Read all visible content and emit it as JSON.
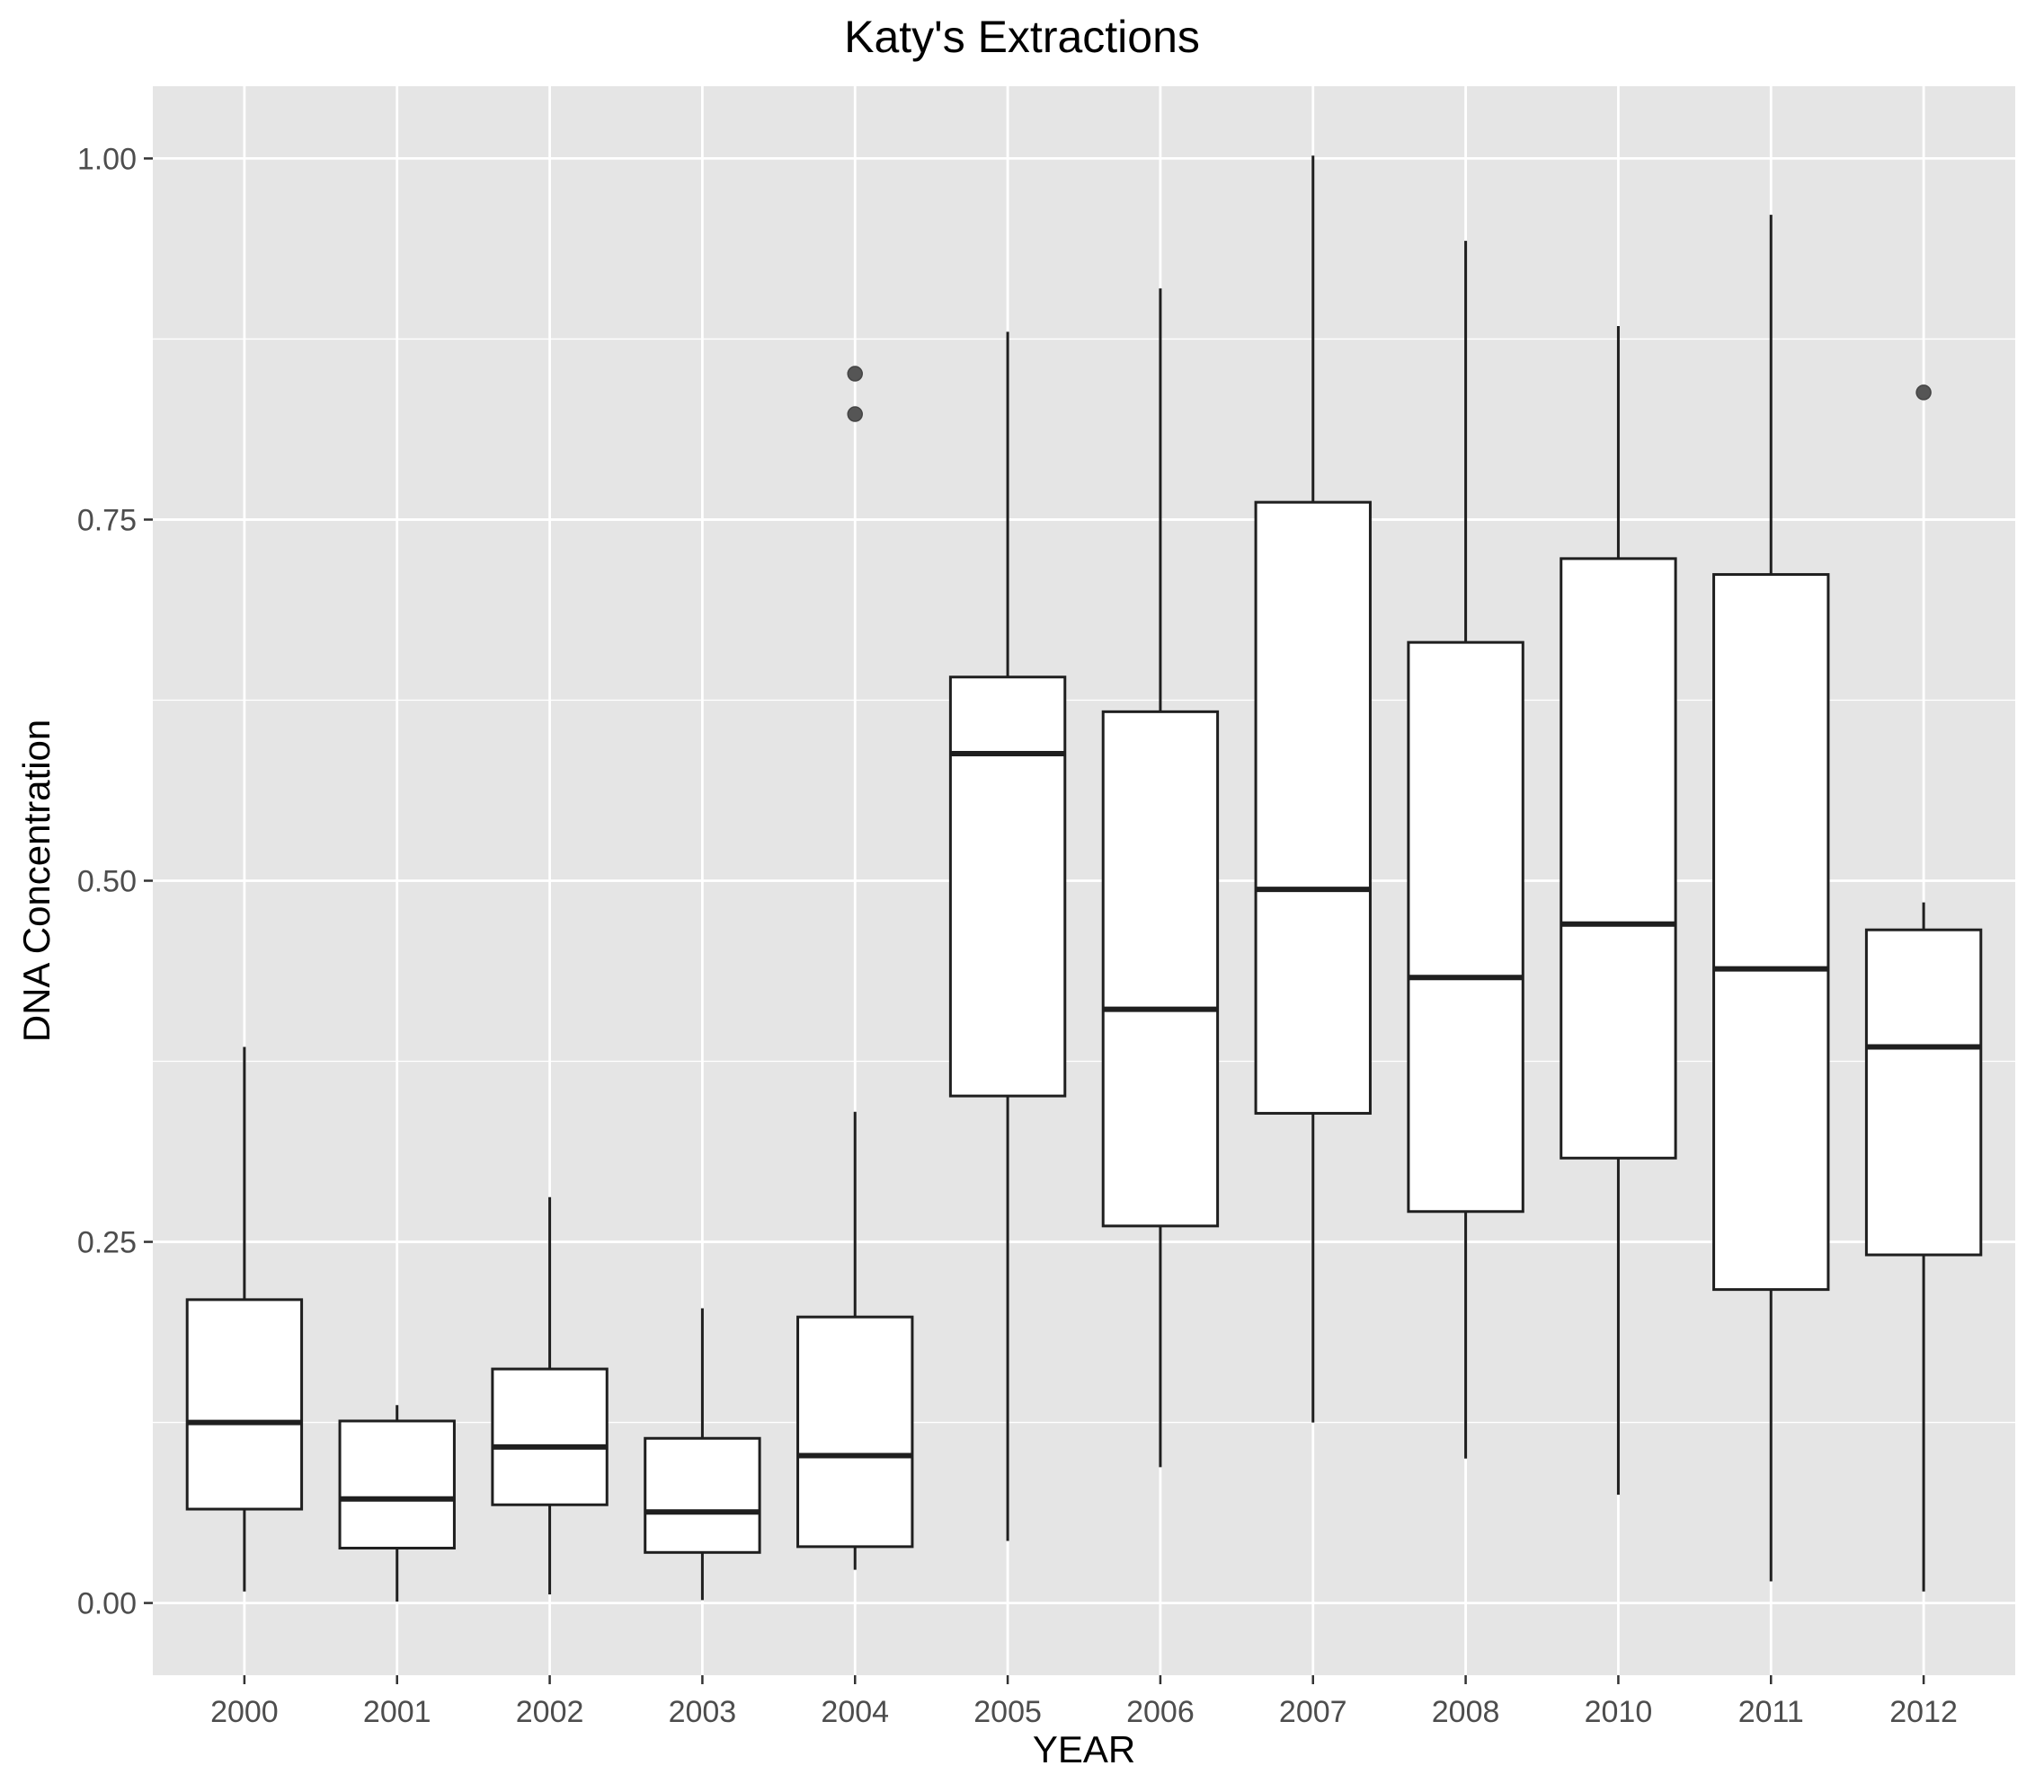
{
  "chart_data": {
    "type": "boxplot",
    "title": "Katy's Extractions",
    "xlabel": "YEAR",
    "ylabel": "DNA Concentration",
    "ylim": [
      -0.05,
      1.05
    ],
    "y_ticks": [
      {
        "value": 0.0,
        "label": "0.00"
      },
      {
        "value": 0.25,
        "label": "0.25"
      },
      {
        "value": 0.5,
        "label": "0.50"
      },
      {
        "value": 0.75,
        "label": "0.75"
      },
      {
        "value": 1.0,
        "label": "1.00"
      }
    ],
    "grid": true,
    "legend": "none",
    "colors": {
      "panel": "#e5e5e5",
      "grid": "#ffffff",
      "box_fill": "#ffffff",
      "stroke": "#1f1f1f",
      "outlier": "#555555",
      "tick_text": "#4d4d4d"
    },
    "categories": [
      "2000",
      "2001",
      "2002",
      "2003",
      "2004",
      "2005",
      "2006",
      "2007",
      "2008",
      "2010",
      "2011",
      "2012"
    ],
    "boxes": [
      {
        "category": "2000",
        "min": 0.008,
        "q1": 0.065,
        "median": 0.125,
        "q3": 0.21,
        "max": 0.385,
        "outliers": []
      },
      {
        "category": "2001",
        "min": 0.001,
        "q1": 0.038,
        "median": 0.072,
        "q3": 0.126,
        "max": 0.137,
        "outliers": []
      },
      {
        "category": "2002",
        "min": 0.006,
        "q1": 0.068,
        "median": 0.108,
        "q3": 0.162,
        "max": 0.281,
        "outliers": []
      },
      {
        "category": "2003",
        "min": 0.002,
        "q1": 0.035,
        "median": 0.063,
        "q3": 0.114,
        "max": 0.204,
        "outliers": []
      },
      {
        "category": "2004",
        "min": 0.023,
        "q1": 0.039,
        "median": 0.102,
        "q3": 0.198,
        "max": 0.34,
        "outliers": [
          0.851,
          0.823
        ]
      },
      {
        "category": "2005",
        "min": 0.043,
        "q1": 0.351,
        "median": 0.588,
        "q3": 0.641,
        "max": 0.88,
        "outliers": []
      },
      {
        "category": "2006",
        "min": 0.094,
        "q1": 0.261,
        "median": 0.411,
        "q3": 0.617,
        "max": 0.91,
        "outliers": []
      },
      {
        "category": "2007",
        "min": 0.125,
        "q1": 0.339,
        "median": 0.494,
        "q3": 0.762,
        "max": 1.002,
        "outliers": []
      },
      {
        "category": "2008",
        "min": 0.1,
        "q1": 0.271,
        "median": 0.433,
        "q3": 0.665,
        "max": 0.943,
        "outliers": []
      },
      {
        "category": "2010",
        "min": 0.075,
        "q1": 0.308,
        "median": 0.47,
        "q3": 0.723,
        "max": 0.884,
        "outliers": []
      },
      {
        "category": "2011",
        "min": 0.015,
        "q1": 0.217,
        "median": 0.439,
        "q3": 0.712,
        "max": 0.961,
        "outliers": []
      },
      {
        "category": "2012",
        "min": 0.008,
        "q1": 0.241,
        "median": 0.385,
        "q3": 0.466,
        "max": 0.485,
        "outliers": [
          0.838
        ]
      }
    ]
  }
}
